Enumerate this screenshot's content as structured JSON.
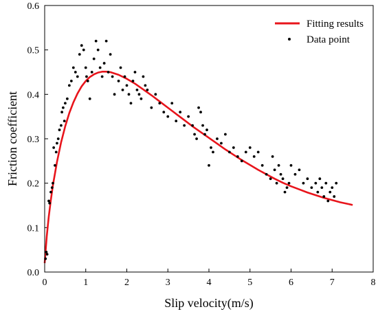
{
  "chart_data": {
    "type": "scatter",
    "title": "",
    "xlabel": "Slip velocity(m/s)",
    "ylabel": "Friction coefficient",
    "xlim": [
      0,
      8
    ],
    "ylim": [
      0,
      0.6
    ],
    "x_ticks": [
      "0",
      "1",
      "2",
      "3",
      "4",
      "5",
      "6",
      "7",
      "8"
    ],
    "y_ticks": [
      "0.0",
      "0.1",
      "0.2",
      "0.3",
      "0.4",
      "0.5",
      "0.6"
    ],
    "grid": false,
    "legend_position": "top-right",
    "series": [
      {
        "name": "Fitting results",
        "kind": "line",
        "color": "#e8141b",
        "x": [
          0.0,
          0.05,
          0.1,
          0.15,
          0.2,
          0.3,
          0.4,
          0.5,
          0.6,
          0.7,
          0.8,
          0.9,
          1.0,
          1.1,
          1.2,
          1.3,
          1.4,
          1.5,
          1.6,
          1.8,
          2.0,
          2.2,
          2.4,
          2.6,
          2.8,
          3.0,
          3.2,
          3.4,
          3.6,
          3.8,
          4.0,
          4.2,
          4.4,
          4.6,
          4.8,
          5.0,
          5.2,
          5.4,
          5.6,
          5.8,
          6.0,
          6.2,
          6.4,
          6.6,
          6.8,
          7.0,
          7.2,
          7.5
        ],
        "y": [
          0.02,
          0.08,
          0.125,
          0.162,
          0.195,
          0.248,
          0.292,
          0.328,
          0.358,
          0.382,
          0.402,
          0.418,
          0.43,
          0.439,
          0.445,
          0.449,
          0.451,
          0.451,
          0.45,
          0.444,
          0.435,
          0.424,
          0.411,
          0.398,
          0.384,
          0.37,
          0.356,
          0.342,
          0.328,
          0.315,
          0.302,
          0.289,
          0.276,
          0.264,
          0.252,
          0.241,
          0.23,
          0.22,
          0.21,
          0.201,
          0.193,
          0.186,
          0.179,
          0.173,
          0.167,
          0.162,
          0.157,
          0.151
        ]
      },
      {
        "name": "Data point",
        "kind": "scatter",
        "color": "#000000",
        "x": [
          0.02,
          0.04,
          0.06,
          0.1,
          0.12,
          0.15,
          0.18,
          0.2,
          0.22,
          0.25,
          0.28,
          0.3,
          0.33,
          0.36,
          0.4,
          0.42,
          0.45,
          0.48,
          0.5,
          0.55,
          0.6,
          0.65,
          0.7,
          0.75,
          0.8,
          0.85,
          0.9,
          0.95,
          1.0,
          1.02,
          1.05,
          1.1,
          1.15,
          1.2,
          1.25,
          1.3,
          1.35,
          1.4,
          1.45,
          1.5,
          1.55,
          1.6,
          1.65,
          1.7,
          1.8,
          1.85,
          1.9,
          1.95,
          2.0,
          2.05,
          2.1,
          2.15,
          2.2,
          2.25,
          2.3,
          2.35,
          2.4,
          2.45,
          2.5,
          2.6,
          2.7,
          2.8,
          2.9,
          3.0,
          3.1,
          3.2,
          3.3,
          3.4,
          3.5,
          3.6,
          3.65,
          3.7,
          3.75,
          3.8,
          3.85,
          3.9,
          3.95,
          4.0,
          4.05,
          4.1,
          4.2,
          4.3,
          4.4,
          4.5,
          4.6,
          4.7,
          4.8,
          4.9,
          5.0,
          5.1,
          5.2,
          5.3,
          5.4,
          5.5,
          5.55,
          5.6,
          5.65,
          5.7,
          5.75,
          5.8,
          5.85,
          5.9,
          5.95,
          6.0,
          6.1,
          6.2,
          6.3,
          6.4,
          6.5,
          6.6,
          6.65,
          6.7,
          6.75,
          6.8,
          6.85,
          6.9,
          6.95,
          7.0,
          7.05,
          7.1
        ],
        "y": [
          0.03,
          0.045,
          0.04,
          0.16,
          0.155,
          0.18,
          0.19,
          0.2,
          0.28,
          0.24,
          0.27,
          0.29,
          0.3,
          0.32,
          0.33,
          0.36,
          0.37,
          0.34,
          0.38,
          0.39,
          0.42,
          0.43,
          0.46,
          0.45,
          0.44,
          0.49,
          0.51,
          0.5,
          0.46,
          0.44,
          0.43,
          0.39,
          0.45,
          0.48,
          0.52,
          0.5,
          0.46,
          0.44,
          0.47,
          0.52,
          0.45,
          0.49,
          0.44,
          0.4,
          0.43,
          0.46,
          0.41,
          0.44,
          0.42,
          0.4,
          0.38,
          0.43,
          0.45,
          0.41,
          0.4,
          0.39,
          0.44,
          0.42,
          0.41,
          0.37,
          0.4,
          0.38,
          0.36,
          0.35,
          0.38,
          0.34,
          0.36,
          0.33,
          0.35,
          0.33,
          0.31,
          0.3,
          0.37,
          0.36,
          0.33,
          0.31,
          0.32,
          0.24,
          0.28,
          0.27,
          0.3,
          0.29,
          0.31,
          0.27,
          0.28,
          0.26,
          0.25,
          0.27,
          0.28,
          0.26,
          0.27,
          0.24,
          0.22,
          0.21,
          0.26,
          0.23,
          0.2,
          0.24,
          0.22,
          0.21,
          0.18,
          0.19,
          0.2,
          0.24,
          0.22,
          0.23,
          0.2,
          0.21,
          0.19,
          0.2,
          0.18,
          0.21,
          0.19,
          0.17,
          0.2,
          0.16,
          0.18,
          0.19,
          0.17,
          0.2
        ]
      }
    ]
  }
}
